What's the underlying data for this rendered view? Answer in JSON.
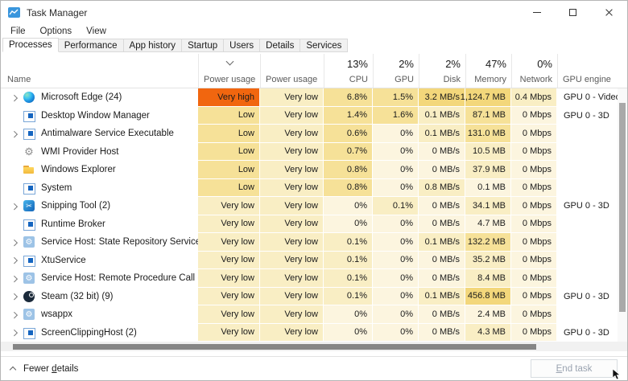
{
  "window": {
    "title": "Task Manager"
  },
  "menu": {
    "items": [
      "File",
      "Options",
      "View"
    ]
  },
  "tabs": {
    "active": "Processes",
    "items": [
      "Processes",
      "Performance",
      "App history",
      "Startup",
      "Users",
      "Details",
      "Services"
    ]
  },
  "palette": {
    "vh": "#F1660F",
    "l3": "#F3D77B",
    "l2": "#F6E198",
    "l1": "#F9EEC4",
    "l0": "#FCF5DF"
  },
  "table": {
    "name_header": "Name",
    "columns": [
      {
        "id": "power",
        "label": "Power usage",
        "stat": null,
        "align": "left",
        "sort": true
      },
      {
        "id": "trend",
        "label": "Power usage tr...",
        "stat": null,
        "align": "left"
      },
      {
        "id": "cpu",
        "label": "CPU",
        "stat": "13%",
        "align": "right"
      },
      {
        "id": "gpu",
        "label": "GPU",
        "stat": "2%",
        "align": "right"
      },
      {
        "id": "disk",
        "label": "Disk",
        "stat": "2%",
        "align": "right"
      },
      {
        "id": "memory",
        "label": "Memory",
        "stat": "47%",
        "align": "right"
      },
      {
        "id": "network",
        "label": "Network",
        "stat": "0%",
        "align": "right"
      },
      {
        "id": "engine",
        "label": "GPU engine",
        "stat": null,
        "align": "left"
      }
    ],
    "rows": [
      {
        "name": "Microsoft Edge (24)",
        "icon": "edge-icon",
        "expandable": true,
        "cells": [
          {
            "t": "Very high",
            "l": "vh"
          },
          {
            "t": "Very low",
            "l": "l1"
          },
          {
            "t": "6.8%",
            "l": "l2"
          },
          {
            "t": "1.5%",
            "l": "l2"
          },
          {
            "t": "3.2 MB/s",
            "l": "l3"
          },
          {
            "t": "1,124.7 MB",
            "l": "l3"
          },
          {
            "t": "0.4 Mbps",
            "l": "l1"
          }
        ],
        "engine": "GPU 0 - Video ..."
      },
      {
        "name": "Desktop Window Manager",
        "icon": "window-icon",
        "expandable": false,
        "cells": [
          {
            "t": "Low",
            "l": "l2"
          },
          {
            "t": "Very low",
            "l": "l1"
          },
          {
            "t": "1.4%",
            "l": "l2"
          },
          {
            "t": "1.6%",
            "l": "l2"
          },
          {
            "t": "0.1 MB/s",
            "l": "l1"
          },
          {
            "t": "87.1 MB",
            "l": "l2"
          },
          {
            "t": "0 Mbps",
            "l": "l0"
          }
        ],
        "engine": "GPU 0 - 3D"
      },
      {
        "name": "Antimalware Service Executable",
        "icon": "window-icon",
        "expandable": true,
        "cells": [
          {
            "t": "Low",
            "l": "l2"
          },
          {
            "t": "Very low",
            "l": "l1"
          },
          {
            "t": "0.6%",
            "l": "l2"
          },
          {
            "t": "0%",
            "l": "l0"
          },
          {
            "t": "0.1 MB/s",
            "l": "l1"
          },
          {
            "t": "131.0 MB",
            "l": "l2"
          },
          {
            "t": "0 Mbps",
            "l": "l0"
          }
        ],
        "engine": ""
      },
      {
        "name": "WMI Provider Host",
        "icon": "gears-icon",
        "expandable": false,
        "cells": [
          {
            "t": "Low",
            "l": "l2"
          },
          {
            "t": "Very low",
            "l": "l1"
          },
          {
            "t": "0.7%",
            "l": "l2"
          },
          {
            "t": "0%",
            "l": "l0"
          },
          {
            "t": "0 MB/s",
            "l": "l0"
          },
          {
            "t": "10.5 MB",
            "l": "l1"
          },
          {
            "t": "0 Mbps",
            "l": "l0"
          }
        ],
        "engine": ""
      },
      {
        "name": "Windows Explorer",
        "icon": "folder-icon",
        "expandable": false,
        "cells": [
          {
            "t": "Low",
            "l": "l2"
          },
          {
            "t": "Very low",
            "l": "l1"
          },
          {
            "t": "0.8%",
            "l": "l2"
          },
          {
            "t": "0%",
            "l": "l0"
          },
          {
            "t": "0 MB/s",
            "l": "l0"
          },
          {
            "t": "37.9 MB",
            "l": "l1"
          },
          {
            "t": "0 Mbps",
            "l": "l0"
          }
        ],
        "engine": ""
      },
      {
        "name": "System",
        "icon": "window-icon",
        "expandable": false,
        "cells": [
          {
            "t": "Low",
            "l": "l2"
          },
          {
            "t": "Very low",
            "l": "l1"
          },
          {
            "t": "0.8%",
            "l": "l2"
          },
          {
            "t": "0%",
            "l": "l0"
          },
          {
            "t": "0.8 MB/s",
            "l": "l1"
          },
          {
            "t": "0.1 MB",
            "l": "l0"
          },
          {
            "t": "0 Mbps",
            "l": "l0"
          }
        ],
        "engine": ""
      },
      {
        "name": "Snipping Tool (2)",
        "icon": "snip-icon",
        "expandable": true,
        "cells": [
          {
            "t": "Very low",
            "l": "l1"
          },
          {
            "t": "Very low",
            "l": "l1"
          },
          {
            "t": "0%",
            "l": "l0"
          },
          {
            "t": "0.1%",
            "l": "l1"
          },
          {
            "t": "0 MB/s",
            "l": "l0"
          },
          {
            "t": "34.1 MB",
            "l": "l1"
          },
          {
            "t": "0 Mbps",
            "l": "l0"
          }
        ],
        "engine": "GPU 0 - 3D"
      },
      {
        "name": "Runtime Broker",
        "icon": "window-icon",
        "expandable": false,
        "cells": [
          {
            "t": "Very low",
            "l": "l1"
          },
          {
            "t": "Very low",
            "l": "l1"
          },
          {
            "t": "0%",
            "l": "l0"
          },
          {
            "t": "0%",
            "l": "l0"
          },
          {
            "t": "0 MB/s",
            "l": "l0"
          },
          {
            "t": "4.7 MB",
            "l": "l0"
          },
          {
            "t": "0 Mbps",
            "l": "l0"
          }
        ],
        "engine": ""
      },
      {
        "name": "Service Host: State Repository Service",
        "icon": "service-icon",
        "expandable": true,
        "cells": [
          {
            "t": "Very low",
            "l": "l1"
          },
          {
            "t": "Very low",
            "l": "l1"
          },
          {
            "t": "0.1%",
            "l": "l1"
          },
          {
            "t": "0%",
            "l": "l0"
          },
          {
            "t": "0.1 MB/s",
            "l": "l1"
          },
          {
            "t": "132.2 MB",
            "l": "l2"
          },
          {
            "t": "0 Mbps",
            "l": "l0"
          }
        ],
        "engine": ""
      },
      {
        "name": "XtuService",
        "icon": "window-icon",
        "expandable": true,
        "cells": [
          {
            "t": "Very low",
            "l": "l1"
          },
          {
            "t": "Very low",
            "l": "l1"
          },
          {
            "t": "0.1%",
            "l": "l1"
          },
          {
            "t": "0%",
            "l": "l0"
          },
          {
            "t": "0 MB/s",
            "l": "l0"
          },
          {
            "t": "35.2 MB",
            "l": "l1"
          },
          {
            "t": "0 Mbps",
            "l": "l0"
          }
        ],
        "engine": ""
      },
      {
        "name": "Service Host: Remote Procedure Call (2)",
        "icon": "service-icon",
        "expandable": true,
        "cells": [
          {
            "t": "Very low",
            "l": "l1"
          },
          {
            "t": "Very low",
            "l": "l1"
          },
          {
            "t": "0.1%",
            "l": "l1"
          },
          {
            "t": "0%",
            "l": "l0"
          },
          {
            "t": "0 MB/s",
            "l": "l0"
          },
          {
            "t": "8.4 MB",
            "l": "l1"
          },
          {
            "t": "0 Mbps",
            "l": "l0"
          }
        ],
        "engine": ""
      },
      {
        "name": "Steam (32 bit) (9)",
        "icon": "steam-icon",
        "expandable": true,
        "cells": [
          {
            "t": "Very low",
            "l": "l1"
          },
          {
            "t": "Very low",
            "l": "l1"
          },
          {
            "t": "0.1%",
            "l": "l1"
          },
          {
            "t": "0%",
            "l": "l0"
          },
          {
            "t": "0.1 MB/s",
            "l": "l1"
          },
          {
            "t": "456.8 MB",
            "l": "l3"
          },
          {
            "t": "0 Mbps",
            "l": "l0"
          }
        ],
        "engine": "GPU 0 - 3D"
      },
      {
        "name": "wsappx",
        "icon": "service-icon",
        "expandable": true,
        "cells": [
          {
            "t": "Very low",
            "l": "l1"
          },
          {
            "t": "Very low",
            "l": "l1"
          },
          {
            "t": "0%",
            "l": "l0"
          },
          {
            "t": "0%",
            "l": "l0"
          },
          {
            "t": "0 MB/s",
            "l": "l0"
          },
          {
            "t": "2.4 MB",
            "l": "l0"
          },
          {
            "t": "0 Mbps",
            "l": "l0"
          }
        ],
        "engine": ""
      },
      {
        "name": "ScreenClippingHost (2)",
        "icon": "window-icon",
        "expandable": true,
        "cells": [
          {
            "t": "Very low",
            "l": "l1"
          },
          {
            "t": "Very low",
            "l": "l1"
          },
          {
            "t": "0%",
            "l": "l0"
          },
          {
            "t": "0%",
            "l": "l0"
          },
          {
            "t": "0 MB/s",
            "l": "l0"
          },
          {
            "t": "4.3 MB",
            "l": "l1"
          },
          {
            "t": "0 Mbps",
            "l": "l0"
          }
        ],
        "engine": "GPU 0 - 3D"
      }
    ]
  },
  "footer": {
    "fewer_details": {
      "pre": "Fewer ",
      "key": "d",
      "post": "etails"
    },
    "end_task": {
      "pre": "",
      "key": "E",
      "post": "nd task"
    }
  }
}
